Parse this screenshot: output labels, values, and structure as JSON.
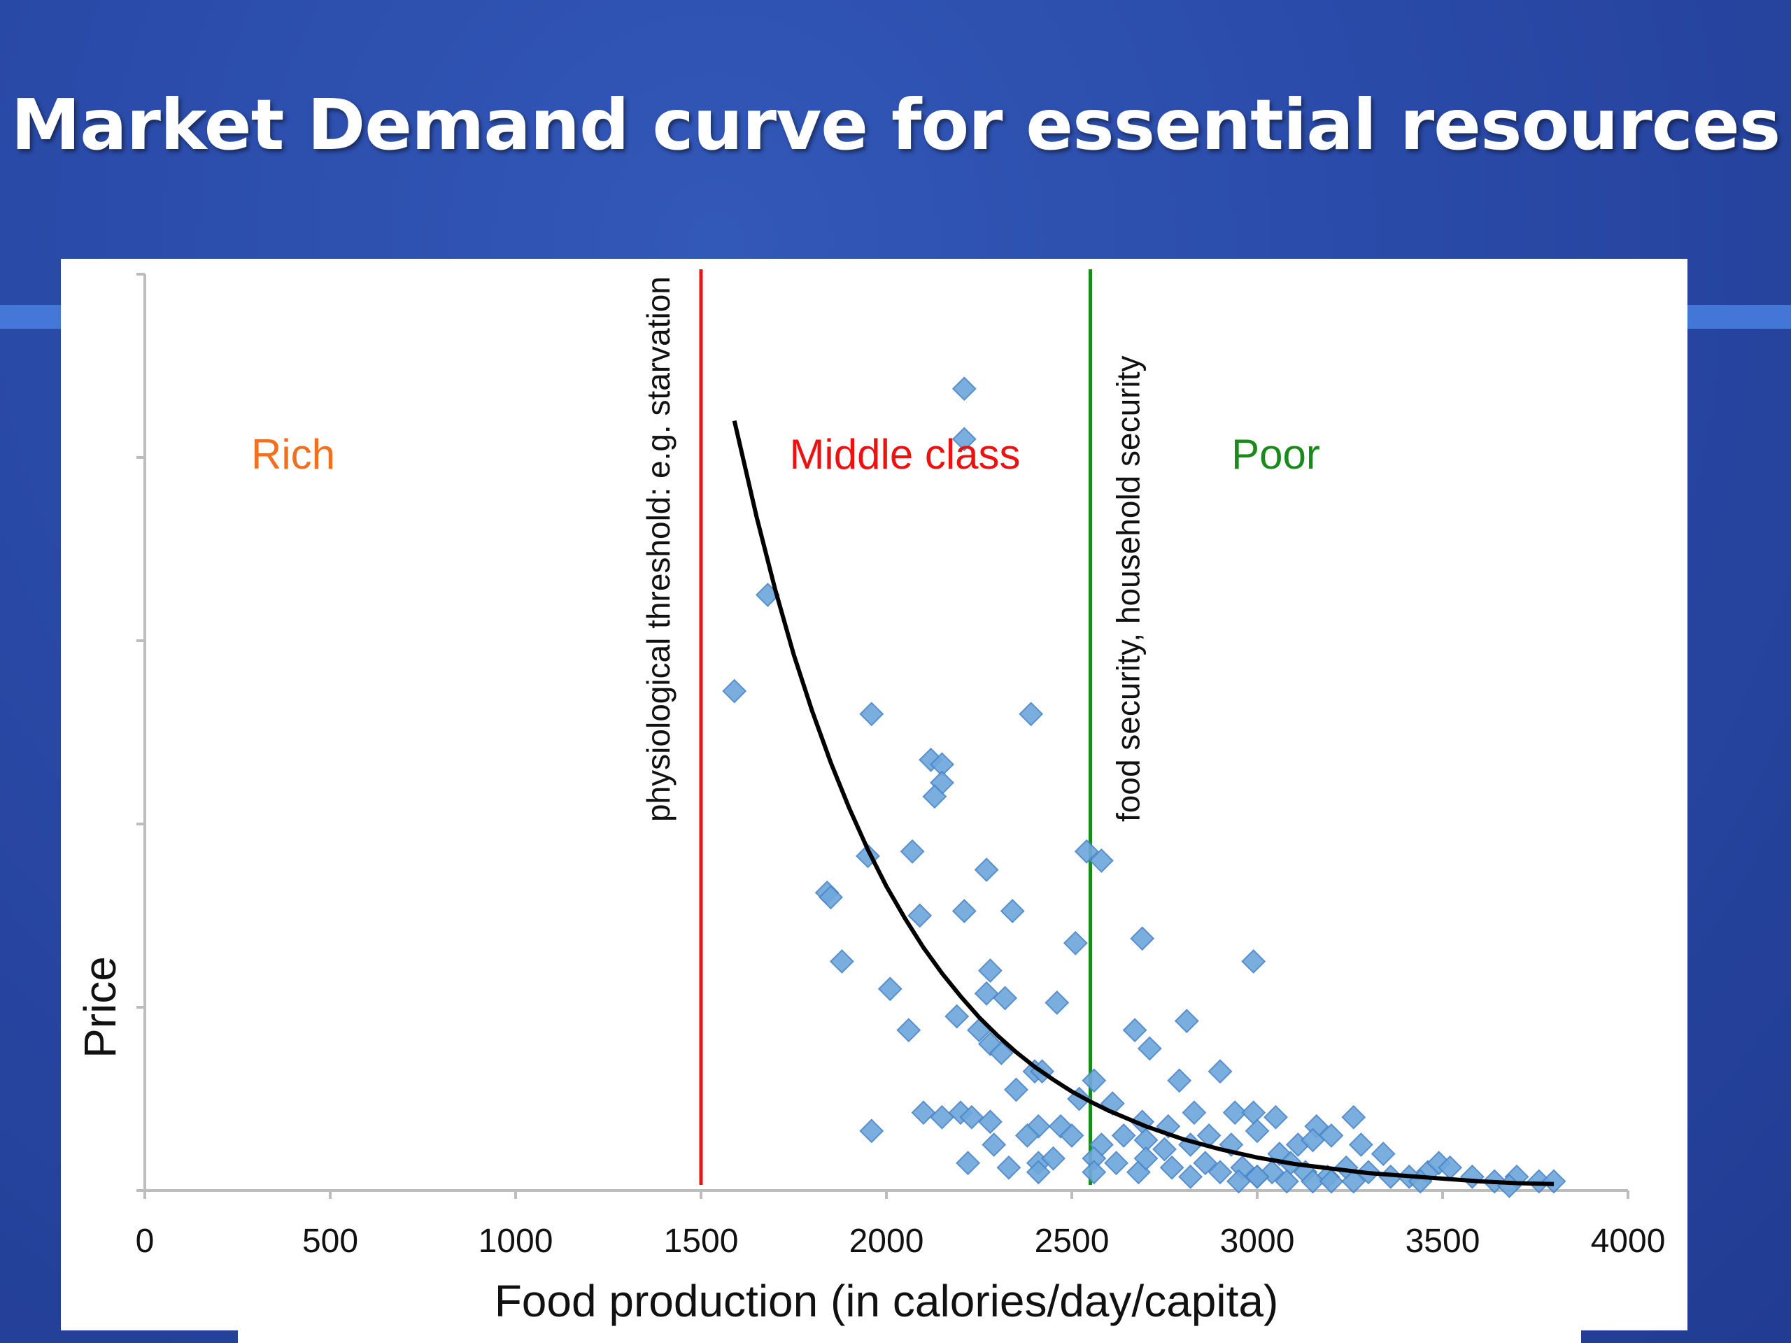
{
  "slide": {
    "title": "Market Demand curve for essential resources"
  },
  "chart_data": {
    "type": "scatter",
    "title": "",
    "xlabel": "Food production (in calories/day/capita)",
    "ylabel": "Price",
    "xlim": [
      0,
      4000
    ],
    "ylim": [
      0,
      100
    ],
    "x_ticks": [
      "0",
      "500",
      "1000",
      "1500",
      "2000",
      "2500",
      "3000",
      "3500",
      "4000"
    ],
    "grid": false,
    "legend": "none",
    "regions": [
      {
        "label": "Rich",
        "color": "#f07020"
      },
      {
        "label": "Middle class",
        "color": "#ee1111"
      },
      {
        "label": "Poor",
        "color": "#1a8a1a"
      }
    ],
    "thresholds": [
      {
        "x": 1500,
        "label": "physiological threshold: e.g. starvation",
        "color": "#e8141a"
      },
      {
        "x": 2550,
        "label": "food security, household security",
        "color": "#1a8a1a"
      }
    ],
    "curve": {
      "type": "exponential-decay",
      "color": "#000000",
      "x": [
        1590,
        1650,
        1700,
        1750,
        1800,
        1850,
        1900,
        1950,
        2000,
        2050,
        2100,
        2150,
        2200,
        2250,
        2300,
        2350,
        2400,
        2450,
        2500,
        2550,
        2600,
        2700,
        2800,
        2900,
        3000,
        3100,
        3200,
        3300,
        3400,
        3500,
        3600,
        3700,
        3800
      ],
      "y": [
        84,
        73.5,
        65.6,
        58.5,
        52.3,
        46.7,
        41.7,
        37.2,
        33.2,
        29.7,
        26.5,
        23.7,
        21.2,
        18.9,
        16.9,
        15.1,
        13.5,
        12.1,
        10.8,
        9.7,
        8.7,
        7.0,
        5.6,
        4.5,
        3.6,
        2.9,
        2.4,
        1.9,
        1.6,
        1.3,
        1.0,
        0.8,
        0.7
      ]
    },
    "series": [
      {
        "marker": "diamond",
        "color": "#6fa8dc",
        "points": [
          [
            2210,
            87.5
          ],
          [
            2210,
            82
          ],
          [
            1680,
            65
          ],
          [
            1590,
            54.5
          ],
          [
            1960,
            52
          ],
          [
            2390,
            52
          ],
          [
            2120,
            47
          ],
          [
            2150,
            46.5
          ],
          [
            2150,
            44.5
          ],
          [
            2130,
            43
          ],
          [
            1950,
            36.5
          ],
          [
            2070,
            37
          ],
          [
            2540,
            37
          ],
          [
            2580,
            36
          ],
          [
            1840,
            32.5
          ],
          [
            1850,
            32
          ],
          [
            2270,
            35
          ],
          [
            2210,
            30.5
          ],
          [
            2340,
            30.5
          ],
          [
            2090,
            30
          ],
          [
            2690,
            27.5
          ],
          [
            2510,
            27
          ],
          [
            1880,
            25
          ],
          [
            2280,
            24
          ],
          [
            2010,
            22
          ],
          [
            2270,
            21.5
          ],
          [
            2320,
            21
          ],
          [
            2460,
            20.5
          ],
          [
            2990,
            25
          ],
          [
            2190,
            19
          ],
          [
            2060,
            17.5
          ],
          [
            2250,
            17.5
          ],
          [
            2280,
            16
          ],
          [
            2310,
            15
          ],
          [
            2670,
            17.5
          ],
          [
            2710,
            15.5
          ],
          [
            2810,
            18.5
          ],
          [
            2400,
            13
          ],
          [
            2420,
            13
          ],
          [
            2560,
            12
          ],
          [
            2790,
            12
          ],
          [
            2900,
            13
          ],
          [
            2350,
            11
          ],
          [
            2520,
            10
          ],
          [
            2610,
            9.5
          ],
          [
            2200,
            8.5
          ],
          [
            2230,
            8
          ],
          [
            2280,
            7.5
          ],
          [
            2410,
            7
          ],
          [
            2470,
            7
          ],
          [
            2690,
            7.5
          ],
          [
            2760,
            7
          ],
          [
            2830,
            8.5
          ],
          [
            2940,
            8.5
          ],
          [
            2990,
            8.5
          ],
          [
            3050,
            8
          ],
          [
            3260,
            8
          ],
          [
            3160,
            7
          ],
          [
            3200,
            6
          ],
          [
            2100,
            8.5
          ],
          [
            2150,
            8
          ],
          [
            1960,
            6.5
          ],
          [
            2290,
            5
          ],
          [
            2380,
            6
          ],
          [
            2500,
            6
          ],
          [
            2580,
            5
          ],
          [
            2640,
            6
          ],
          [
            2700,
            5.5
          ],
          [
            2750,
            4.5
          ],
          [
            2820,
            5
          ],
          [
            2870,
            6
          ],
          [
            2930,
            5
          ],
          [
            3000,
            6.5
          ],
          [
            3060,
            4
          ],
          [
            3110,
            5
          ],
          [
            3150,
            5.5
          ],
          [
            3280,
            5
          ],
          [
            3340,
            4
          ],
          [
            2220,
            3
          ],
          [
            2330,
            2.5
          ],
          [
            2410,
            3
          ],
          [
            2450,
            3.5
          ],
          [
            2560,
            3.5
          ],
          [
            2620,
            3
          ],
          [
            2680,
            2
          ],
          [
            2700,
            3.5
          ],
          [
            2770,
            2.5
          ],
          [
            2820,
            1.5
          ],
          [
            2860,
            3
          ],
          [
            2900,
            2
          ],
          [
            2960,
            2.5
          ],
          [
            3000,
            1.5
          ],
          [
            3040,
            2
          ],
          [
            3090,
            3
          ],
          [
            3130,
            2
          ],
          [
            3190,
            1.5
          ],
          [
            3240,
            2.5
          ],
          [
            3300,
            2
          ],
          [
            3360,
            1.5
          ],
          [
            3410,
            1.5
          ],
          [
            3460,
            2
          ],
          [
            3490,
            3
          ],
          [
            3520,
            2.5
          ],
          [
            3440,
            1
          ],
          [
            3580,
            1.5
          ],
          [
            3640,
            1
          ],
          [
            3700,
            1.5
          ],
          [
            3760,
            1
          ],
          [
            3800,
            1
          ],
          [
            3260,
            1
          ],
          [
            3150,
            1
          ],
          [
            3080,
            1
          ],
          [
            3000,
            1.5
          ],
          [
            2410,
            2
          ],
          [
            2560,
            2
          ],
          [
            2950,
            1
          ],
          [
            3200,
            1
          ],
          [
            3680,
            0.5
          ]
        ]
      }
    ]
  }
}
